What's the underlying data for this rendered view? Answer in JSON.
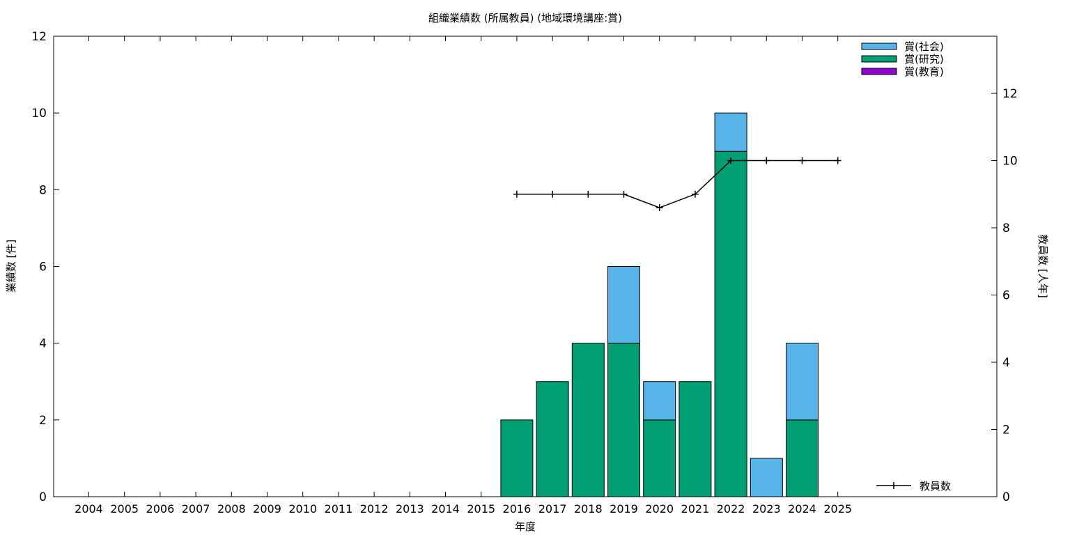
{
  "chart_data": {
    "type": "bar",
    "title": "組織業績数 (所属教員) (地域環境講座:賞)",
    "xlabel": "年度",
    "ylabel": "業績数 [件]",
    "y2label": "教員数 [人年]",
    "categories": [
      "2004",
      "2005",
      "2006",
      "2007",
      "2008",
      "2009",
      "2010",
      "2011",
      "2012",
      "2013",
      "2014",
      "2015",
      "2016",
      "2017",
      "2018",
      "2019",
      "2020",
      "2021",
      "2022",
      "2023",
      "2024",
      "2025"
    ],
    "ylim": [
      0,
      12
    ],
    "y2lim": [
      0,
      13.7
    ],
    "yticks": [
      0,
      2,
      4,
      6,
      8,
      10,
      12
    ],
    "y2ticks": [
      0,
      2,
      4,
      6,
      8,
      10,
      12
    ],
    "stacked": true,
    "legend_position": "top-right",
    "series": [
      {
        "name": "賞(社会)",
        "color": "#56b4e9",
        "values": [
          0,
          0,
          0,
          0,
          0,
          0,
          0,
          0,
          0,
          0,
          0,
          0,
          0,
          0,
          0,
          2,
          1,
          0,
          1,
          1,
          2,
          0
        ]
      },
      {
        "name": "賞(研究)",
        "color": "#009e73",
        "values": [
          0,
          0,
          0,
          0,
          0,
          0,
          0,
          0,
          0,
          0,
          0,
          0,
          2,
          3,
          4,
          4,
          2,
          3,
          9,
          0,
          2,
          0
        ]
      },
      {
        "name": "賞(教育)",
        "color": "#9400d3",
        "values": [
          0,
          0,
          0,
          0,
          0,
          0,
          0,
          0,
          0,
          0,
          0,
          0,
          0,
          0,
          0,
          0,
          0,
          0,
          0,
          0,
          0,
          0
        ]
      }
    ],
    "line_series": {
      "name": "教員数",
      "color": "#000000",
      "axis": "right",
      "x": [
        "2016",
        "2017",
        "2018",
        "2019",
        "2020",
        "2021",
        "2022",
        "2023",
        "2024",
        "2025"
      ],
      "values": [
        9,
        9,
        9,
        9,
        8.6,
        9,
        10,
        10,
        10,
        10
      ]
    }
  }
}
